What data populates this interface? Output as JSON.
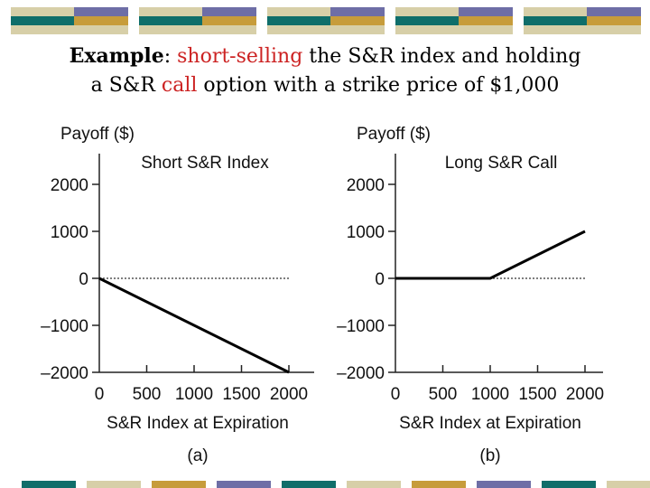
{
  "slide": {
    "title_bold": "Example",
    "title_line1_colon": ": ",
    "title_line1_red": "short-selling",
    "title_line1_rest": " the S&R index and holding",
    "title_line2_start": "a S&R ",
    "title_line2_red": "call",
    "title_line2_rest": " option with a strike price of $1,000",
    "colors": {
      "band_tan": "#d7cfa8",
      "band_teal": "#0f6e6a",
      "band_purple": "#6e6ea6",
      "band_gold": "#c79c3b",
      "highlight_red": "#cc2222"
    }
  },
  "chart_data": [
    {
      "type": "line",
      "title": "Short S&R Index",
      "ylabel": "Payoff ($)",
      "xlabel": "S&R Index at Expiration",
      "panel_label": "(a)",
      "x_ticks": [
        "0",
        "500",
        "1000",
        "1500",
        "2000"
      ],
      "y_ticks": [
        "2000",
        "1000",
        "0",
        "–1000",
        "–2000"
      ],
      "xlim": [
        0,
        2000
      ],
      "ylim": [
        -2000,
        2000
      ],
      "zero_reference": "dotted",
      "series": [
        {
          "x": [
            0,
            2000
          ],
          "y": [
            0,
            -2000
          ]
        }
      ]
    },
    {
      "type": "line",
      "title": "Long S&R Call",
      "ylabel": "Payoff ($)",
      "xlabel": "S&R Index at Expiration",
      "panel_label": "(b)",
      "x_ticks": [
        "0",
        "500",
        "1000",
        "1500",
        "2000"
      ],
      "y_ticks": [
        "2000",
        "1000",
        "0",
        "–1000",
        "–2000"
      ],
      "xlim": [
        0,
        2000
      ],
      "ylim": [
        -2000,
        2000
      ],
      "zero_reference": "dotted",
      "series": [
        {
          "x": [
            0,
            1000,
            2000
          ],
          "y": [
            0,
            0,
            1000
          ]
        }
      ]
    }
  ]
}
